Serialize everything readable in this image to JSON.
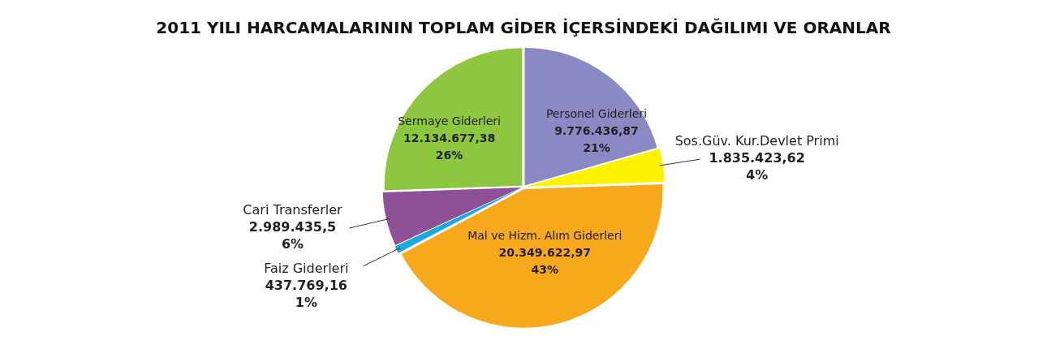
{
  "chart_data": {
    "type": "pie",
    "title": "2011 YILI HARCAMALARININ TOPLAM GİDER İÇERSİNDEKİ DAĞILIMI VE ORANLAR",
    "categories": [
      "Personel Giderleri",
      "Sos.Güv. Kur.Devlet Primi",
      "Mal ve Hizm. Alım Giderleri",
      "Faiz Giderleri",
      "Cari Transferler",
      "Sermaye Giderleri"
    ],
    "values": [
      9776436.87,
      1835423.62,
      20349622.97,
      437769.16,
      2989435.5,
      12134677.38
    ],
    "value_labels": [
      "9.776.436,87\n21%",
      "1.835.423,62\n4%",
      "20.349.622,97\n43%",
      "437.769,16\n1%",
      "2.989.435,5\n6%",
      "12.134.677,38\n26%"
    ],
    "colors": [
      "#8b89c4",
      "#fff200",
      "#f7a81b",
      "#1ba9e1",
      "#8e5196",
      "#8dc63f"
    ],
    "legend": false
  }
}
